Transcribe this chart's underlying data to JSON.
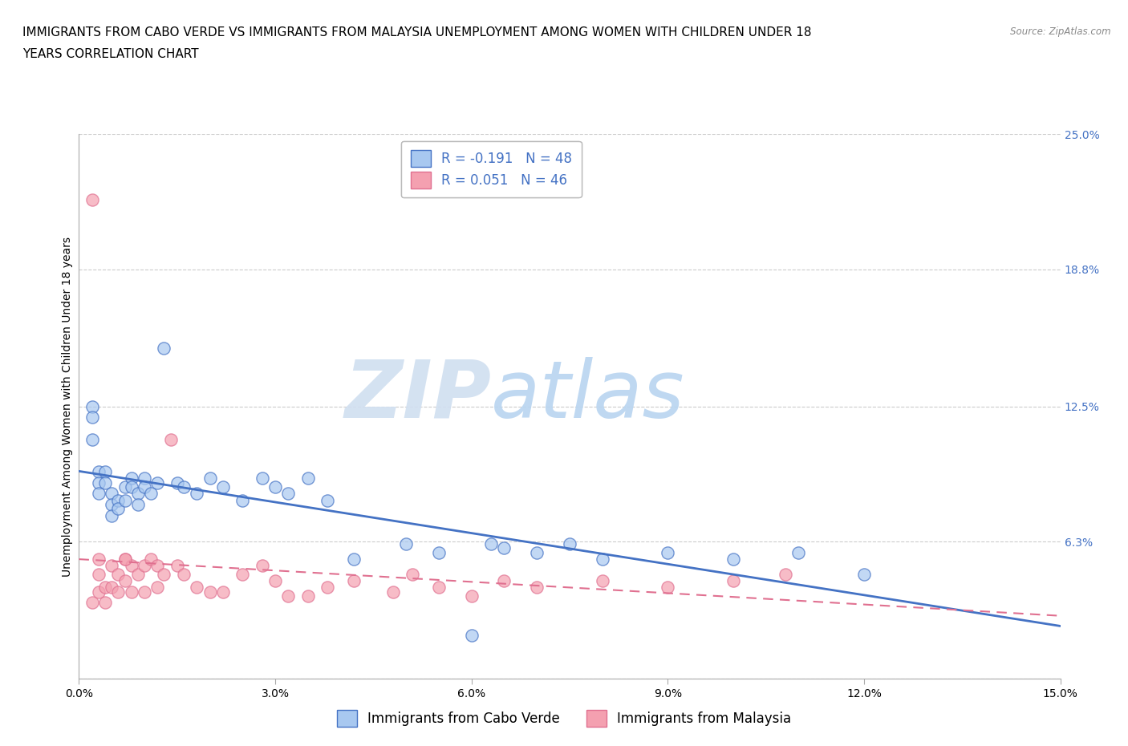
{
  "title_line1": "IMMIGRANTS FROM CABO VERDE VS IMMIGRANTS FROM MALAYSIA UNEMPLOYMENT AMONG WOMEN WITH CHILDREN UNDER 18",
  "title_line2": "YEARS CORRELATION CHART",
  "source": "Source: ZipAtlas.com",
  "ylabel": "Unemployment Among Women with Children Under 18 years",
  "xlim": [
    0.0,
    0.15
  ],
  "ylim": [
    0.0,
    0.25
  ],
  "xticks": [
    0.0,
    0.03,
    0.06,
    0.09,
    0.12,
    0.15
  ],
  "xticklabels": [
    "0.0%",
    "3.0%",
    "6.0%",
    "9.0%",
    "12.0%",
    "15.0%"
  ],
  "yticks_right": [
    0.0,
    0.063,
    0.125,
    0.188,
    0.25
  ],
  "yticklabels_right": [
    "",
    "6.3%",
    "12.5%",
    "18.8%",
    "25.0%"
  ],
  "color_cabo": "#a8c8f0",
  "color_malaysia": "#f4a0b0",
  "color_cabo_line": "#4472c4",
  "color_malaysia_line": "#e07090",
  "R_cabo": -0.191,
  "N_cabo": 48,
  "R_malaysia": 0.051,
  "N_malaysia": 46,
  "legend_label_cabo": "Immigrants from Cabo Verde",
  "legend_label_malaysia": "Immigrants from Malaysia",
  "watermark_zip": "ZIP",
  "watermark_atlas": "atlas",
  "cabo_x": [
    0.002,
    0.002,
    0.002,
    0.003,
    0.003,
    0.003,
    0.004,
    0.004,
    0.005,
    0.005,
    0.005,
    0.006,
    0.006,
    0.007,
    0.007,
    0.008,
    0.008,
    0.009,
    0.009,
    0.01,
    0.01,
    0.011,
    0.012,
    0.013,
    0.015,
    0.016,
    0.018,
    0.02,
    0.022,
    0.025,
    0.028,
    0.03,
    0.032,
    0.035,
    0.038,
    0.042,
    0.05,
    0.055,
    0.06,
    0.063,
    0.065,
    0.07,
    0.075,
    0.08,
    0.09,
    0.1,
    0.11,
    0.12
  ],
  "cabo_y": [
    0.125,
    0.12,
    0.11,
    0.095,
    0.09,
    0.085,
    0.095,
    0.09,
    0.085,
    0.08,
    0.075,
    0.082,
    0.078,
    0.088,
    0.082,
    0.092,
    0.088,
    0.085,
    0.08,
    0.092,
    0.088,
    0.085,
    0.09,
    0.152,
    0.09,
    0.088,
    0.085,
    0.092,
    0.088,
    0.082,
    0.092,
    0.088,
    0.085,
    0.092,
    0.082,
    0.055,
    0.062,
    0.058,
    0.02,
    0.062,
    0.06,
    0.058,
    0.062,
    0.055,
    0.058,
    0.055,
    0.058,
    0.048
  ],
  "malaysia_x": [
    0.002,
    0.002,
    0.003,
    0.003,
    0.003,
    0.004,
    0.004,
    0.005,
    0.005,
    0.006,
    0.006,
    0.007,
    0.007,
    0.008,
    0.008,
    0.009,
    0.01,
    0.01,
    0.011,
    0.012,
    0.012,
    0.013,
    0.014,
    0.015,
    0.016,
    0.018,
    0.02,
    0.022,
    0.025,
    0.028,
    0.03,
    0.032,
    0.035,
    0.038,
    0.042,
    0.048,
    0.051,
    0.055,
    0.06,
    0.065,
    0.07,
    0.08,
    0.09,
    0.1,
    0.108,
    0.007
  ],
  "malaysia_y": [
    0.22,
    0.035,
    0.055,
    0.048,
    0.04,
    0.042,
    0.035,
    0.052,
    0.042,
    0.048,
    0.04,
    0.055,
    0.045,
    0.052,
    0.04,
    0.048,
    0.052,
    0.04,
    0.055,
    0.052,
    0.042,
    0.048,
    0.11,
    0.052,
    0.048,
    0.042,
    0.04,
    0.04,
    0.048,
    0.052,
    0.045,
    0.038,
    0.038,
    0.042,
    0.045,
    0.04,
    0.048,
    0.042,
    0.038,
    0.045,
    0.042,
    0.045,
    0.042,
    0.045,
    0.048,
    0.055
  ],
  "grid_color": "#cccccc",
  "background_color": "#ffffff",
  "title_fontsize": 11,
  "axis_label_fontsize": 10,
  "tick_fontsize": 10,
  "legend_fontsize": 12
}
